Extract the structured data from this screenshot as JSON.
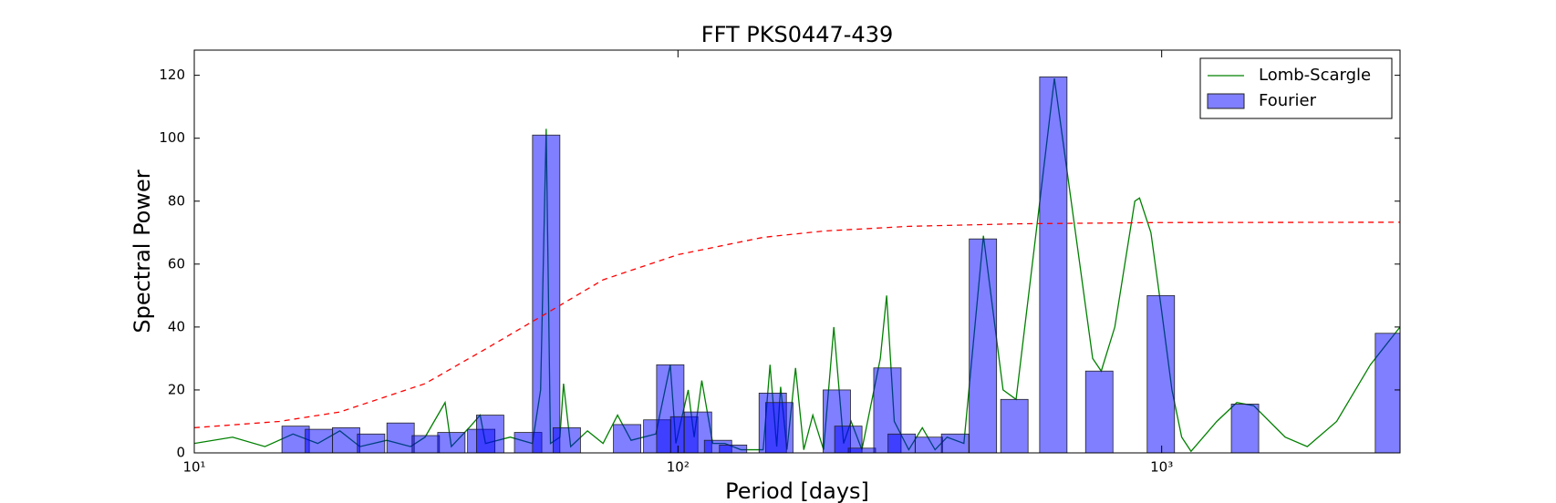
{
  "chart_data": {
    "type": "bar",
    "title": "FFT PKS0447-439",
    "xlabel": "Period [days]",
    "ylabel": "Spectral Power",
    "xscale": "log",
    "xlim": [
      10,
      3110
    ],
    "ylim": [
      0,
      128
    ],
    "xticks": [
      {
        "value": 10,
        "label": "10¹"
      },
      {
        "value": 100,
        "label": "10²"
      },
      {
        "value": 1000,
        "label": "10³"
      }
    ],
    "yticks": [
      0,
      20,
      40,
      60,
      80,
      100,
      120
    ],
    "legend": "upper right",
    "series": [
      {
        "name": "Lomb-Scargle",
        "type": "line",
        "color": "#008000",
        "x": [
          10,
          12,
          14,
          16,
          18,
          20,
          22,
          25,
          28,
          30,
          33,
          34,
          37,
          39,
          40,
          45,
          50,
          52,
          53.4,
          54.5,
          57,
          58,
          60,
          65,
          70,
          75,
          80,
          90,
          96.4,
          99,
          105,
          108,
          112,
          118,
          125,
          135,
          150,
          155,
          160,
          163,
          168,
          175,
          182,
          190,
          200,
          210,
          220,
          228,
          240,
          262,
          270,
          280,
          300,
          320,
          340,
          360,
          390,
          428,
          470,
          500,
          550,
          600,
          650,
          720,
          750,
          800,
          880,
          900,
          950,
          1000,
          1050,
          1100,
          1150,
          1300,
          1430,
          1550,
          1800,
          2000,
          2300,
          2700,
          3110
        ],
        "values": [
          3,
          5,
          2,
          6,
          3,
          7,
          2,
          4,
          2,
          5,
          16,
          2,
          8,
          12,
          3,
          5,
          3,
          20,
          103,
          3,
          5,
          22,
          2,
          7,
          3,
          12,
          4,
          6,
          28,
          3,
          20,
          5,
          23,
          3,
          3,
          1,
          1,
          28,
          2,
          21,
          1,
          27,
          1,
          12,
          1,
          40,
          3,
          10,
          1,
          30,
          50,
          10,
          1,
          8,
          1,
          5,
          3,
          69,
          20,
          17,
          70,
          119,
          80,
          30,
          26,
          40,
          80,
          81,
          70,
          45,
          20,
          5,
          0.5,
          10,
          16,
          15,
          5,
          2,
          10,
          28,
          40
        ]
      },
      {
        "name": "Fourier",
        "type": "bar",
        "color": "#0000ff",
        "x": [
          16.2,
          18.1,
          20.6,
          23.2,
          26.7,
          30.1,
          34.0,
          39.2,
          40.9,
          49.0,
          53.4,
          58.9,
          78.5,
          90.6,
          96.4,
          103,
          110,
          121,
          130,
          157,
          162,
          213,
          225,
          240,
          271,
          290,
          330,
          374,
          427,
          496,
          597,
          743,
          996,
          1487,
          2950
        ],
        "values": [
          8.5,
          7.5,
          8,
          6,
          9.5,
          5.5,
          6.5,
          7.5,
          12,
          6.5,
          101,
          8,
          9,
          10.5,
          28,
          11.5,
          13,
          4,
          2.5,
          19,
          16,
          20,
          8.5,
          1.5,
          27,
          6,
          5,
          6,
          68,
          17,
          119.5,
          26,
          50,
          15.5,
          38
        ]
      },
      {
        "type": "line",
        "color": "#ff0000",
        "dash": true,
        "x": [
          10,
          15,
          20,
          30,
          40,
          53,
          70,
          100,
          150,
          200,
          300,
          500,
          1000,
          3110
        ],
        "values": [
          8,
          10,
          13,
          22,
          33,
          44,
          55,
          63,
          68.5,
          70.5,
          72,
          72.8,
          73.2,
          73.3
        ]
      }
    ]
  }
}
